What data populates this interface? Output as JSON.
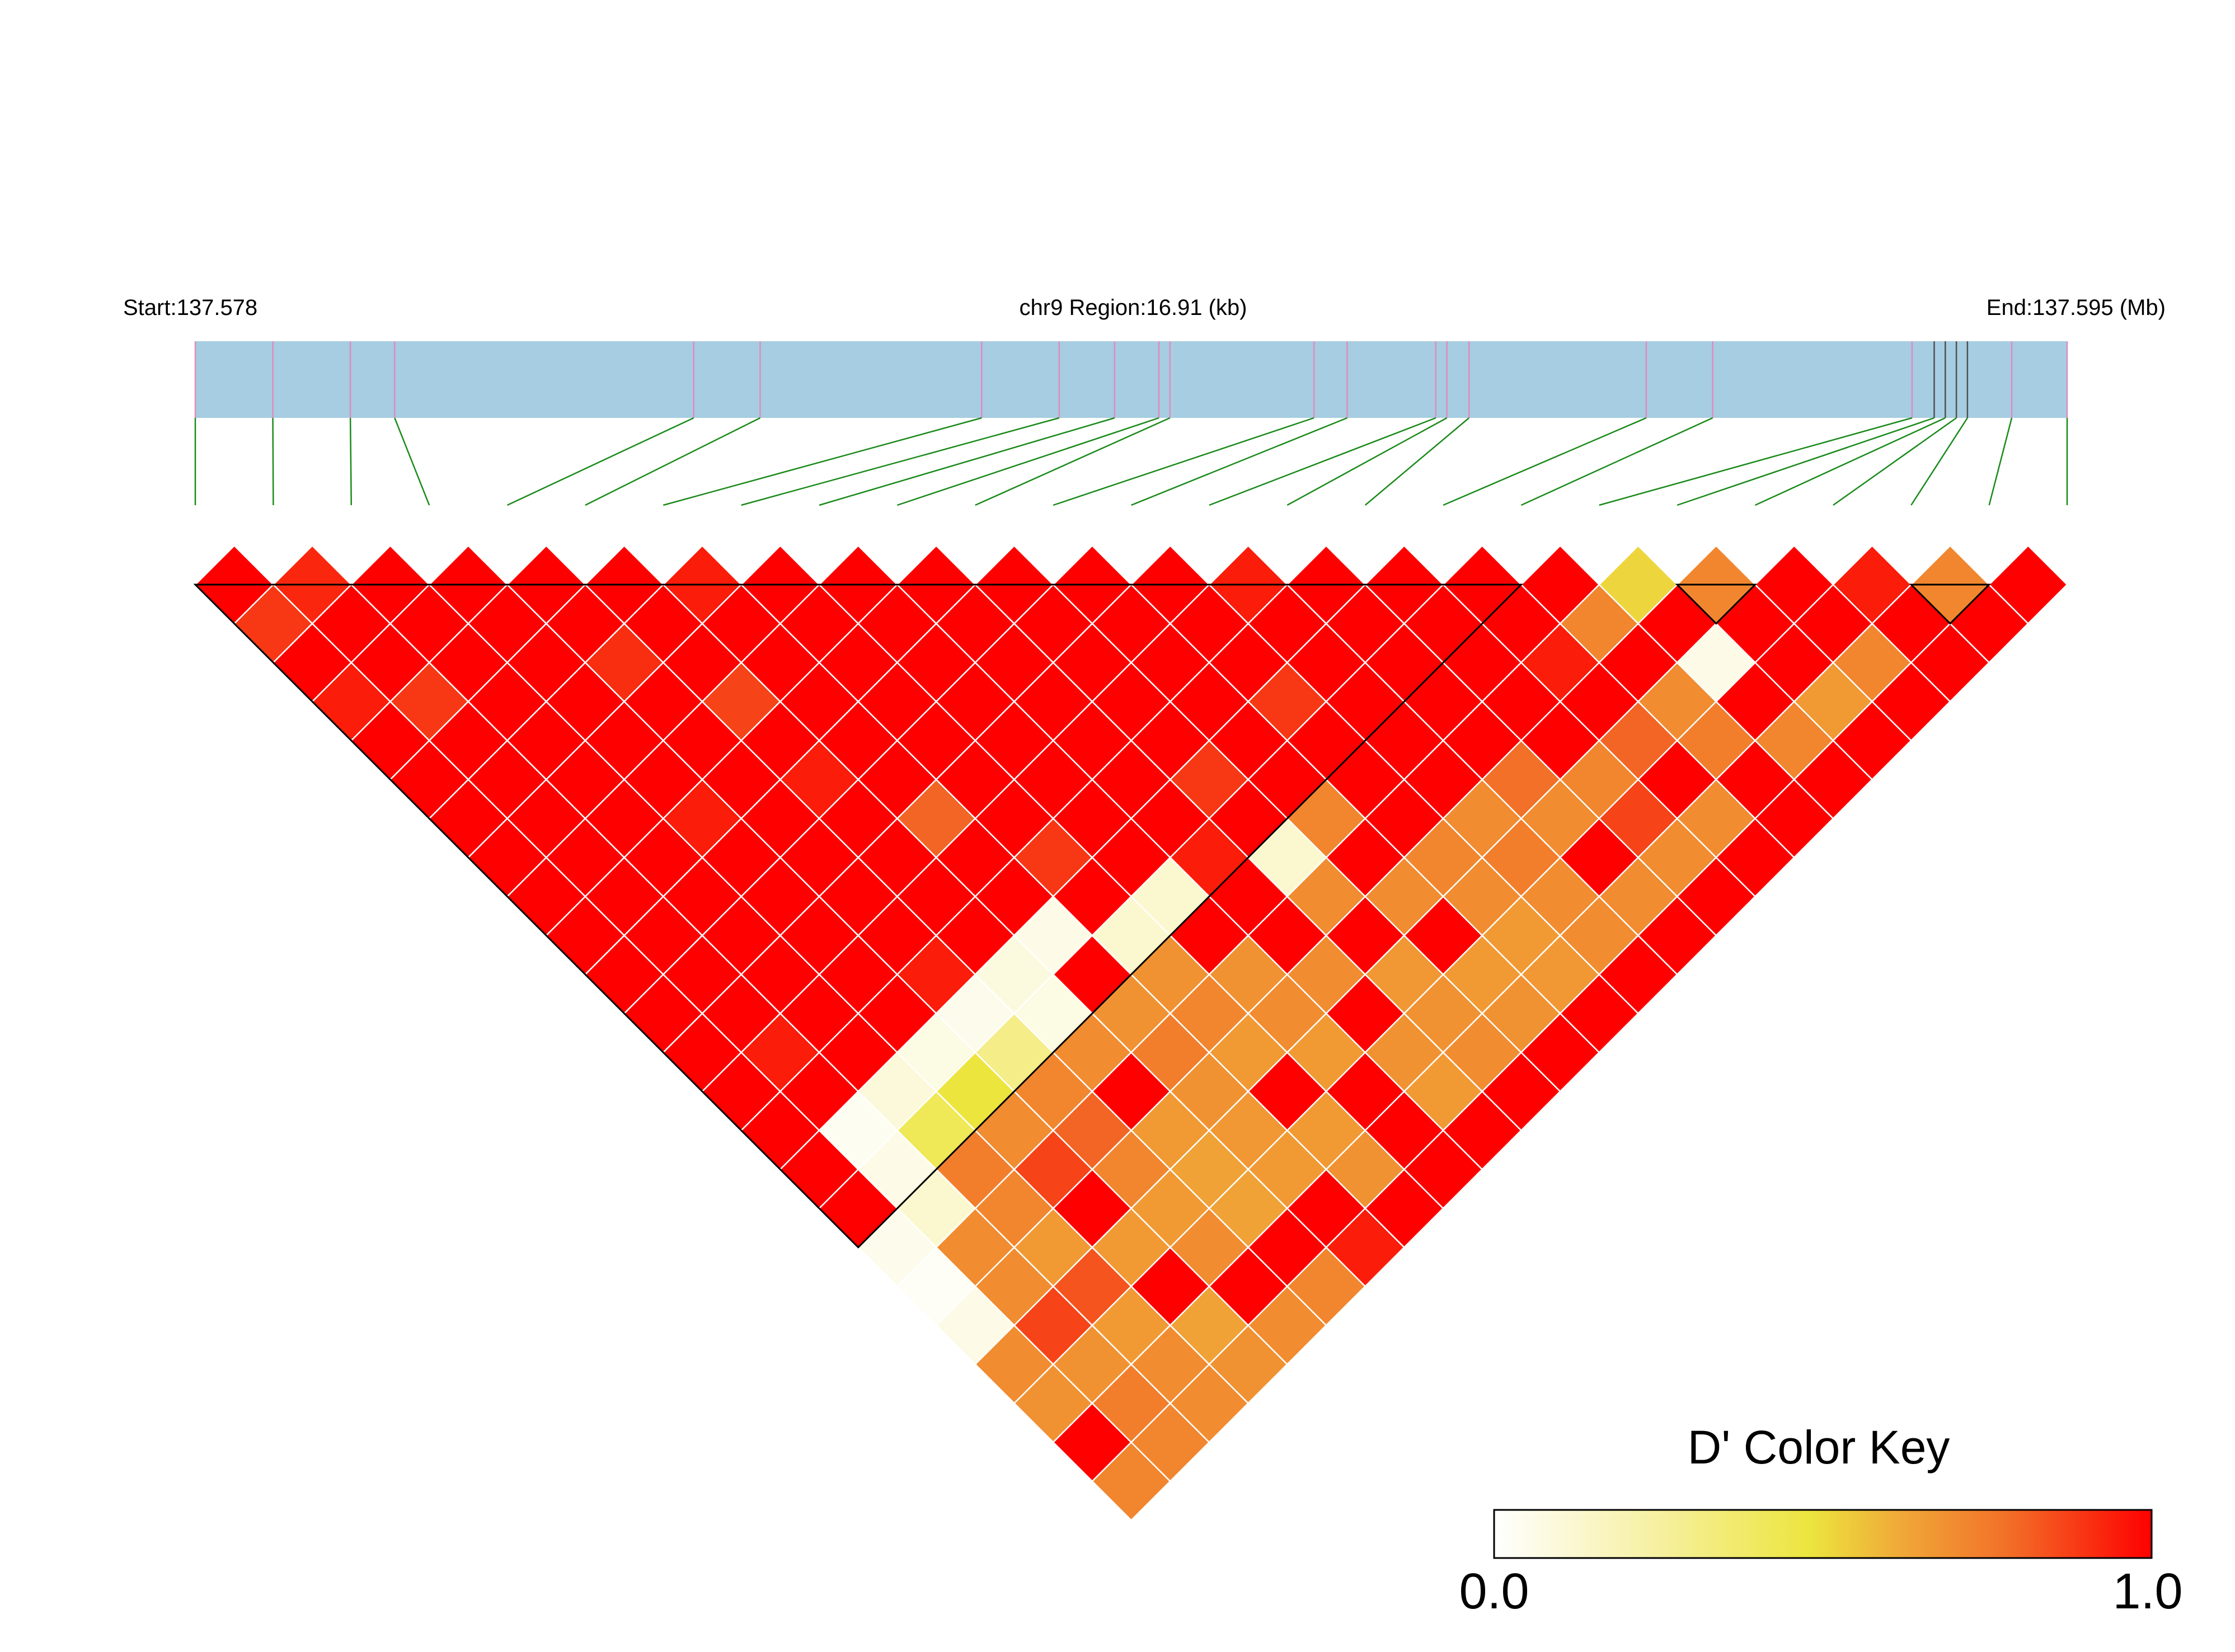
{
  "header": {
    "start_label": "Start:137.578",
    "region_label": "chr9 Region:16.91 (kb)",
    "end_label": "End:137.595 (Mb)"
  },
  "legend": {
    "title": "D' Color Key",
    "min_label": "0.0",
    "max_label": "1.0"
  },
  "colors": {
    "gene_bar": "#a6cde1",
    "marker_line": "#e08ac0",
    "marker_line_dark": "#505050",
    "connector": "#1a8a1a",
    "block_outline": "#000000",
    "cell_border": "#ffffff",
    "ramp": [
      "#ffffff",
      "#f6f0a0",
      "#ece53e",
      "#f0a838",
      "#f27028",
      "#fe0000"
    ]
  },
  "chart_data": {
    "type": "heatmap",
    "title": "D' Color Key",
    "region": {
      "chromosome": "chr9",
      "start_mb": 137.578,
      "end_mb": 137.595,
      "length_kb": 16.91
    },
    "color_scale": {
      "min": 0.0,
      "max": 1.0
    },
    "n_snps": 25,
    "snp_positions_mb": [
      137.578,
      137.5787,
      137.5794,
      137.5798,
      137.5825,
      137.5831,
      137.5851,
      137.5858,
      137.5863,
      137.5867,
      137.5868,
      137.5881,
      137.5884,
      137.5892,
      137.5893,
      137.5895,
      137.5911,
      137.5917,
      137.5935,
      137.5937,
      137.5938,
      137.5939,
      137.594,
      137.5944,
      137.5949
    ],
    "ld_blocks": [
      [
        1,
        18
      ],
      [
        20,
        21
      ],
      [
        23,
        24
      ]
    ],
    "dprime": [
      [
        1,
        0.9,
        1,
        0.95,
        1,
        1,
        1,
        1,
        1,
        1,
        1,
        1,
        1,
        1,
        1,
        1,
        1,
        0.04,
        0.02,
        0.05,
        0.7,
        0.68,
        1,
        0.72
      ],
      [
        0.93,
        1,
        1,
        0.9,
        1,
        1,
        1,
        1,
        1,
        1,
        1,
        1,
        0.95,
        1,
        0.03,
        0.05,
        0.1,
        0.7,
        0.7,
        0.88,
        0.68,
        0.75,
        0.72
      ],
      [
        1,
        1,
        1,
        1,
        1,
        1,
        1,
        1,
        1,
        1,
        1,
        1,
        1,
        0.08,
        0.35,
        0.75,
        0.72,
        0.65,
        0.85,
        0.65,
        0.7,
        0.7
      ],
      [
        1,
        1,
        1,
        1,
        1,
        1,
        0.95,
        1,
        1,
        1,
        1,
        1,
        0.06,
        0.4,
        0.7,
        0.88,
        1,
        0.65,
        1,
        0.62,
        0.68
      ],
      [
        1,
        1,
        0.92,
        1,
        1,
        1,
        1,
        1,
        1,
        1,
        0.95,
        0.04,
        0.25,
        0.72,
        0.82,
        0.72,
        0.65,
        0.7,
        1,
        0.7
      ],
      [
        1,
        1,
        1,
        0.88,
        1,
        0.95,
        1,
        1,
        1,
        1,
        0.07,
        0.06,
        0.7,
        1,
        0.65,
        0.62,
        0.62,
        1,
        0.72
      ],
      [
        0.95,
        1,
        1,
        1,
        1,
        1,
        0.82,
        1,
        1,
        0.05,
        1,
        0.68,
        0.75,
        0.68,
        0.66,
        0.65,
        1,
        0.95
      ],
      [
        1,
        1,
        1,
        1,
        1,
        1,
        1,
        0.9,
        1,
        0.1,
        0.68,
        0.72,
        0.65,
        1,
        0.65,
        0.68,
        1
      ],
      [
        1,
        1,
        1,
        1,
        1,
        1,
        1,
        1,
        0.1,
        1,
        0.68,
        0.7,
        0.65,
        1,
        1,
        1
      ],
      [
        1,
        1,
        1,
        1,
        1,
        1,
        1,
        0.95,
        1,
        1,
        0.7,
        1,
        0.68,
        0.65,
        1
      ],
      [
        1,
        1,
        1,
        1,
        1,
        0.9,
        1,
        0.1,
        0.7,
        1,
        0.66,
        0.68,
        0.7,
        1
      ],
      [
        1,
        1,
        1,
        1,
        1,
        1,
        0.72,
        1,
        0.7,
        1,
        0.65,
        0.68,
        1
      ],
      [
        1,
        1,
        1,
        0.9,
        1,
        1,
        1,
        0.72,
        0.7,
        0.65,
        0.66,
        1
      ],
      [
        0.95,
        1,
        1,
        1,
        1,
        1,
        0.7,
        0.75,
        0.7,
        0.7,
        1
      ],
      [
        1,
        1,
        1,
        1,
        1,
        0.8,
        0.7,
        1,
        0.7,
        1
      ],
      [
        1,
        1,
        1,
        1,
        1,
        0.72,
        0.88,
        0.7,
        1
      ],
      [
        1,
        1,
        0.95,
        1,
        0.82,
        1,
        0.7,
        1
      ],
      [
        1,
        0.72,
        1,
        0.7,
        0.75,
        1,
        1
      ],
      [
        0.45,
        1,
        0.05,
        1,
        0.72,
        1
      ],
      [
        0.72,
        1,
        1,
        0.65,
        1
      ],
      [
        1,
        1,
        0.72,
        1
      ],
      [
        0.95,
        1,
        1
      ],
      [
        0.72,
        1
      ],
      [
        1
      ]
    ]
  }
}
